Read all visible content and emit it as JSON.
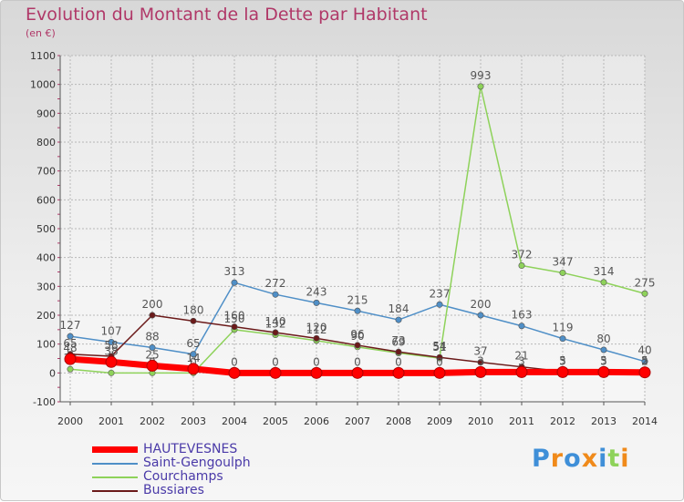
{
  "chart_data": {
    "type": "line",
    "title": "Evolution du Montant de la Dette par Habitant",
    "subtitle": "(en €)",
    "ylim": [
      -100,
      1100
    ],
    "yticks": [
      -100,
      0,
      100,
      200,
      300,
      400,
      500,
      600,
      700,
      800,
      900,
      1000,
      1100
    ],
    "x": [
      "2000",
      "2001",
      "2002",
      "2003",
      "2004",
      "2005",
      "2006",
      "2007",
      "2008",
      "2009",
      "2010",
      "2011",
      "2012",
      "2013",
      "2014"
    ],
    "grid": true,
    "legend_position": "bottom-left",
    "series": [
      {
        "name": "HAUTEVESNES",
        "color": "#ff0000",
        "values": [
          48,
          38,
          25,
          14,
          0,
          0,
          0,
          0,
          0,
          0,
          3,
          3,
          3,
          3,
          2
        ]
      },
      {
        "name": "Saint-Gengoulph",
        "color": "#4f8fc7",
        "values": [
          127,
          107,
          88,
          65,
          313,
          272,
          243,
          215,
          184,
          237,
          200,
          163,
          119,
          80,
          40
        ]
      },
      {
        "name": "Courchamps",
        "color": "#8ed25a",
        "values": [
          13,
          0,
          0,
          0,
          150,
          132,
          112,
          90,
          69,
          51,
          993,
          372,
          347,
          314,
          275
        ]
      },
      {
        "name": "Bussiares",
        "color": "#6b1a1a",
        "values": [
          65,
          58,
          200,
          180,
          160,
          140,
          120,
          96,
          73,
          54,
          37,
          21,
          5,
          5,
          5
        ]
      }
    ]
  },
  "logo": {
    "text": "Proxiti",
    "colors": [
      "#3f8fd8",
      "#f08a1a",
      "#3f8fd8",
      "#f08a1a",
      "#3f8fd8",
      "#8ed25a",
      "#f08a1a"
    ]
  }
}
